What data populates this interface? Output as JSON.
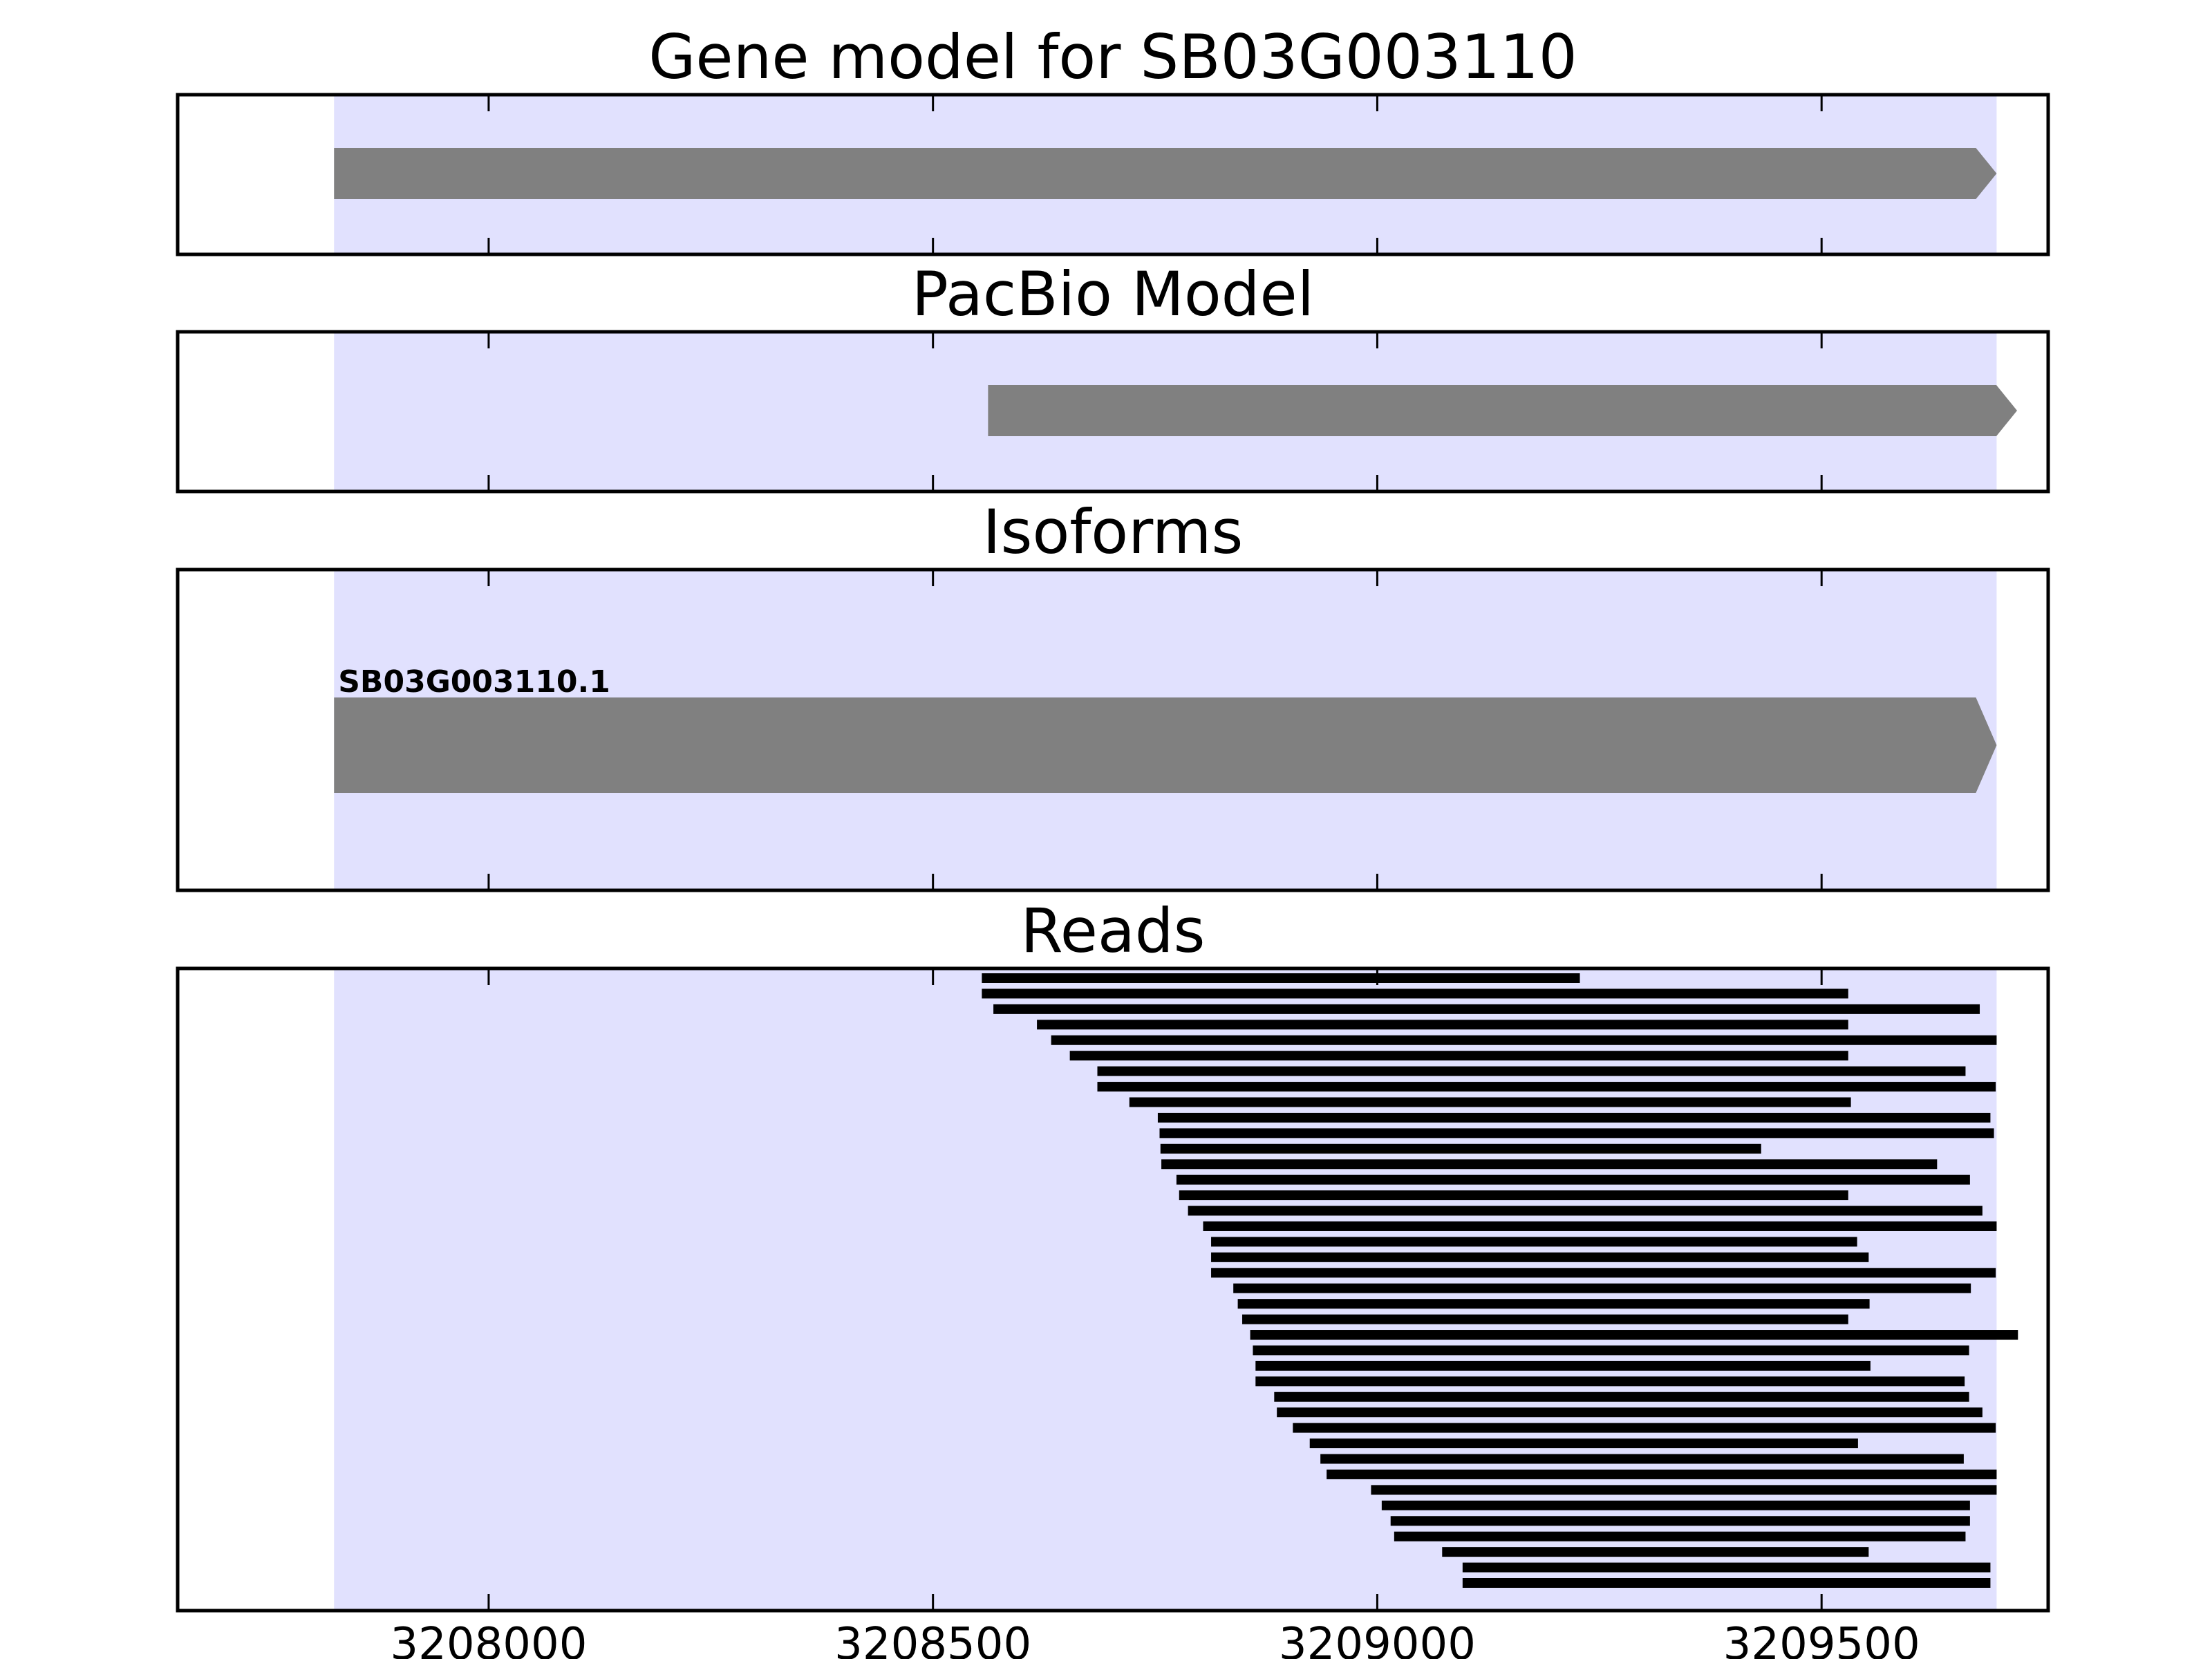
{
  "chart_data": [
    {
      "type": "gene-track",
      "title": "Gene model for SB03G003110",
      "features": [
        {
          "start": 3207826,
          "end": 3209697,
          "strand": "+"
        }
      ]
    },
    {
      "type": "gene-track",
      "title": "PacBio Model",
      "features": [
        {
          "start": 3208562,
          "end": 3209720,
          "strand": "+"
        }
      ]
    },
    {
      "type": "gene-track",
      "title": "Isoforms",
      "features": [
        {
          "name": "SB03G003110.1",
          "start": 3207826,
          "end": 3209697,
          "strand": "+"
        }
      ]
    },
    {
      "type": "read-track",
      "title": "Reads",
      "reads": [
        [
          3208555,
          3209228
        ],
        [
          3208555,
          3209530
        ],
        [
          3208568,
          3209678
        ],
        [
          3208617,
          3209530
        ],
        [
          3208633,
          3209697
        ],
        [
          3208654,
          3209530
        ],
        [
          3208685,
          3209662
        ],
        [
          3208685,
          3209696
        ],
        [
          3208721,
          3209533
        ],
        [
          3208753,
          3209690
        ],
        [
          3208755,
          3209694
        ],
        [
          3208756,
          3209432
        ],
        [
          3208757,
          3209630
        ],
        [
          3208774,
          3209667
        ],
        [
          3208777,
          3209530
        ],
        [
          3208787,
          3209681
        ],
        [
          3208804,
          3209697
        ],
        [
          3208813,
          3209540
        ],
        [
          3208813,
          3209553
        ],
        [
          3208813,
          3209696
        ],
        [
          3208838,
          3209668
        ],
        [
          3208843,
          3209554
        ],
        [
          3208848,
          3209530
        ],
        [
          3208857,
          3209721
        ],
        [
          3208860,
          3209666
        ],
        [
          3208863,
          3209555
        ],
        [
          3208863,
          3209661
        ],
        [
          3208884,
          3209666
        ],
        [
          3208887,
          3209681
        ],
        [
          3208905,
          3209696
        ],
        [
          3208924,
          3209541
        ],
        [
          3208936,
          3209660
        ],
        [
          3208943,
          3209697
        ],
        [
          3208993,
          3209697
        ],
        [
          3209005,
          3209667
        ],
        [
          3209015,
          3209667
        ],
        [
          3209019,
          3209662
        ],
        [
          3209073,
          3209553
        ],
        [
          3209096,
          3209690
        ],
        [
          3209096,
          3209690
        ]
      ]
    }
  ],
  "gene_region": {
    "start": 3207826,
    "end": 3209697,
    "color": "#e1e1fe"
  },
  "feature_color": "#808080",
  "read_color": "#000000",
  "x_axis": {
    "xlim": [
      3207650,
      3209755
    ],
    "ticks": [
      3208000,
      3208500,
      3209000,
      3209500
    ],
    "tick_labels": [
      "3208000",
      "3208500",
      "3209000",
      "3209500"
    ]
  }
}
